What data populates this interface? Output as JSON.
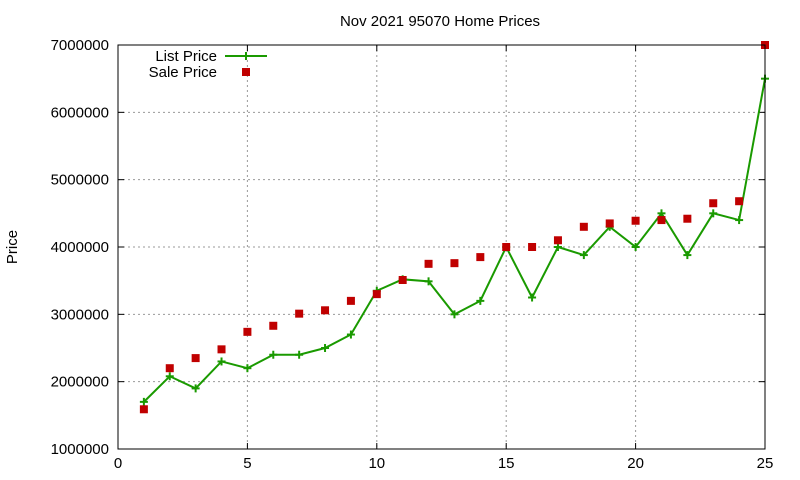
{
  "chart_data": {
    "type": "line",
    "title": "Nov 2021 95070 Home Prices",
    "xlabel": "",
    "ylabel": "Price",
    "xlim": [
      0,
      25
    ],
    "ylim": [
      1000000,
      7000000
    ],
    "xticks": [
      0,
      5,
      10,
      15,
      20,
      25
    ],
    "yticks": [
      1000000,
      2000000,
      3000000,
      4000000,
      5000000,
      6000000,
      7000000
    ],
    "grid": true,
    "legend_position": "top-left",
    "series": [
      {
        "name": "List Price",
        "style": "line-with-plus-markers",
        "color": "#1a9a00",
        "x": [
          1,
          2,
          3,
          4,
          5,
          6,
          7,
          8,
          9,
          10,
          11,
          12,
          13,
          14,
          15,
          16,
          17,
          18,
          19,
          20,
          21,
          22,
          23,
          24,
          25
        ],
        "values": [
          1700000,
          2080000,
          1900000,
          2300000,
          2200000,
          2400000,
          2400000,
          2500000,
          2700000,
          3350000,
          3520000,
          3490000,
          3000000,
          3200000,
          4000000,
          3250000,
          4000000,
          3880000,
          4300000,
          4000000,
          4500000,
          3880000,
          4500000,
          4400000,
          6500000
        ]
      },
      {
        "name": "Sale Price",
        "style": "square-markers",
        "color": "#c00000",
        "x": [
          1,
          2,
          3,
          4,
          5,
          6,
          7,
          8,
          9,
          10,
          11,
          12,
          13,
          14,
          15,
          16,
          17,
          18,
          19,
          20,
          21,
          22,
          23,
          24,
          25
        ],
        "values": [
          1590000,
          2200000,
          2350000,
          2480000,
          2740000,
          2830000,
          3010000,
          3060000,
          3200000,
          3300000,
          3510000,
          3750000,
          3760000,
          3850000,
          4000000,
          4000000,
          4100000,
          4300000,
          4350000,
          4390000,
          4400000,
          4420000,
          4650000,
          4680000,
          7000000
        ]
      }
    ]
  }
}
